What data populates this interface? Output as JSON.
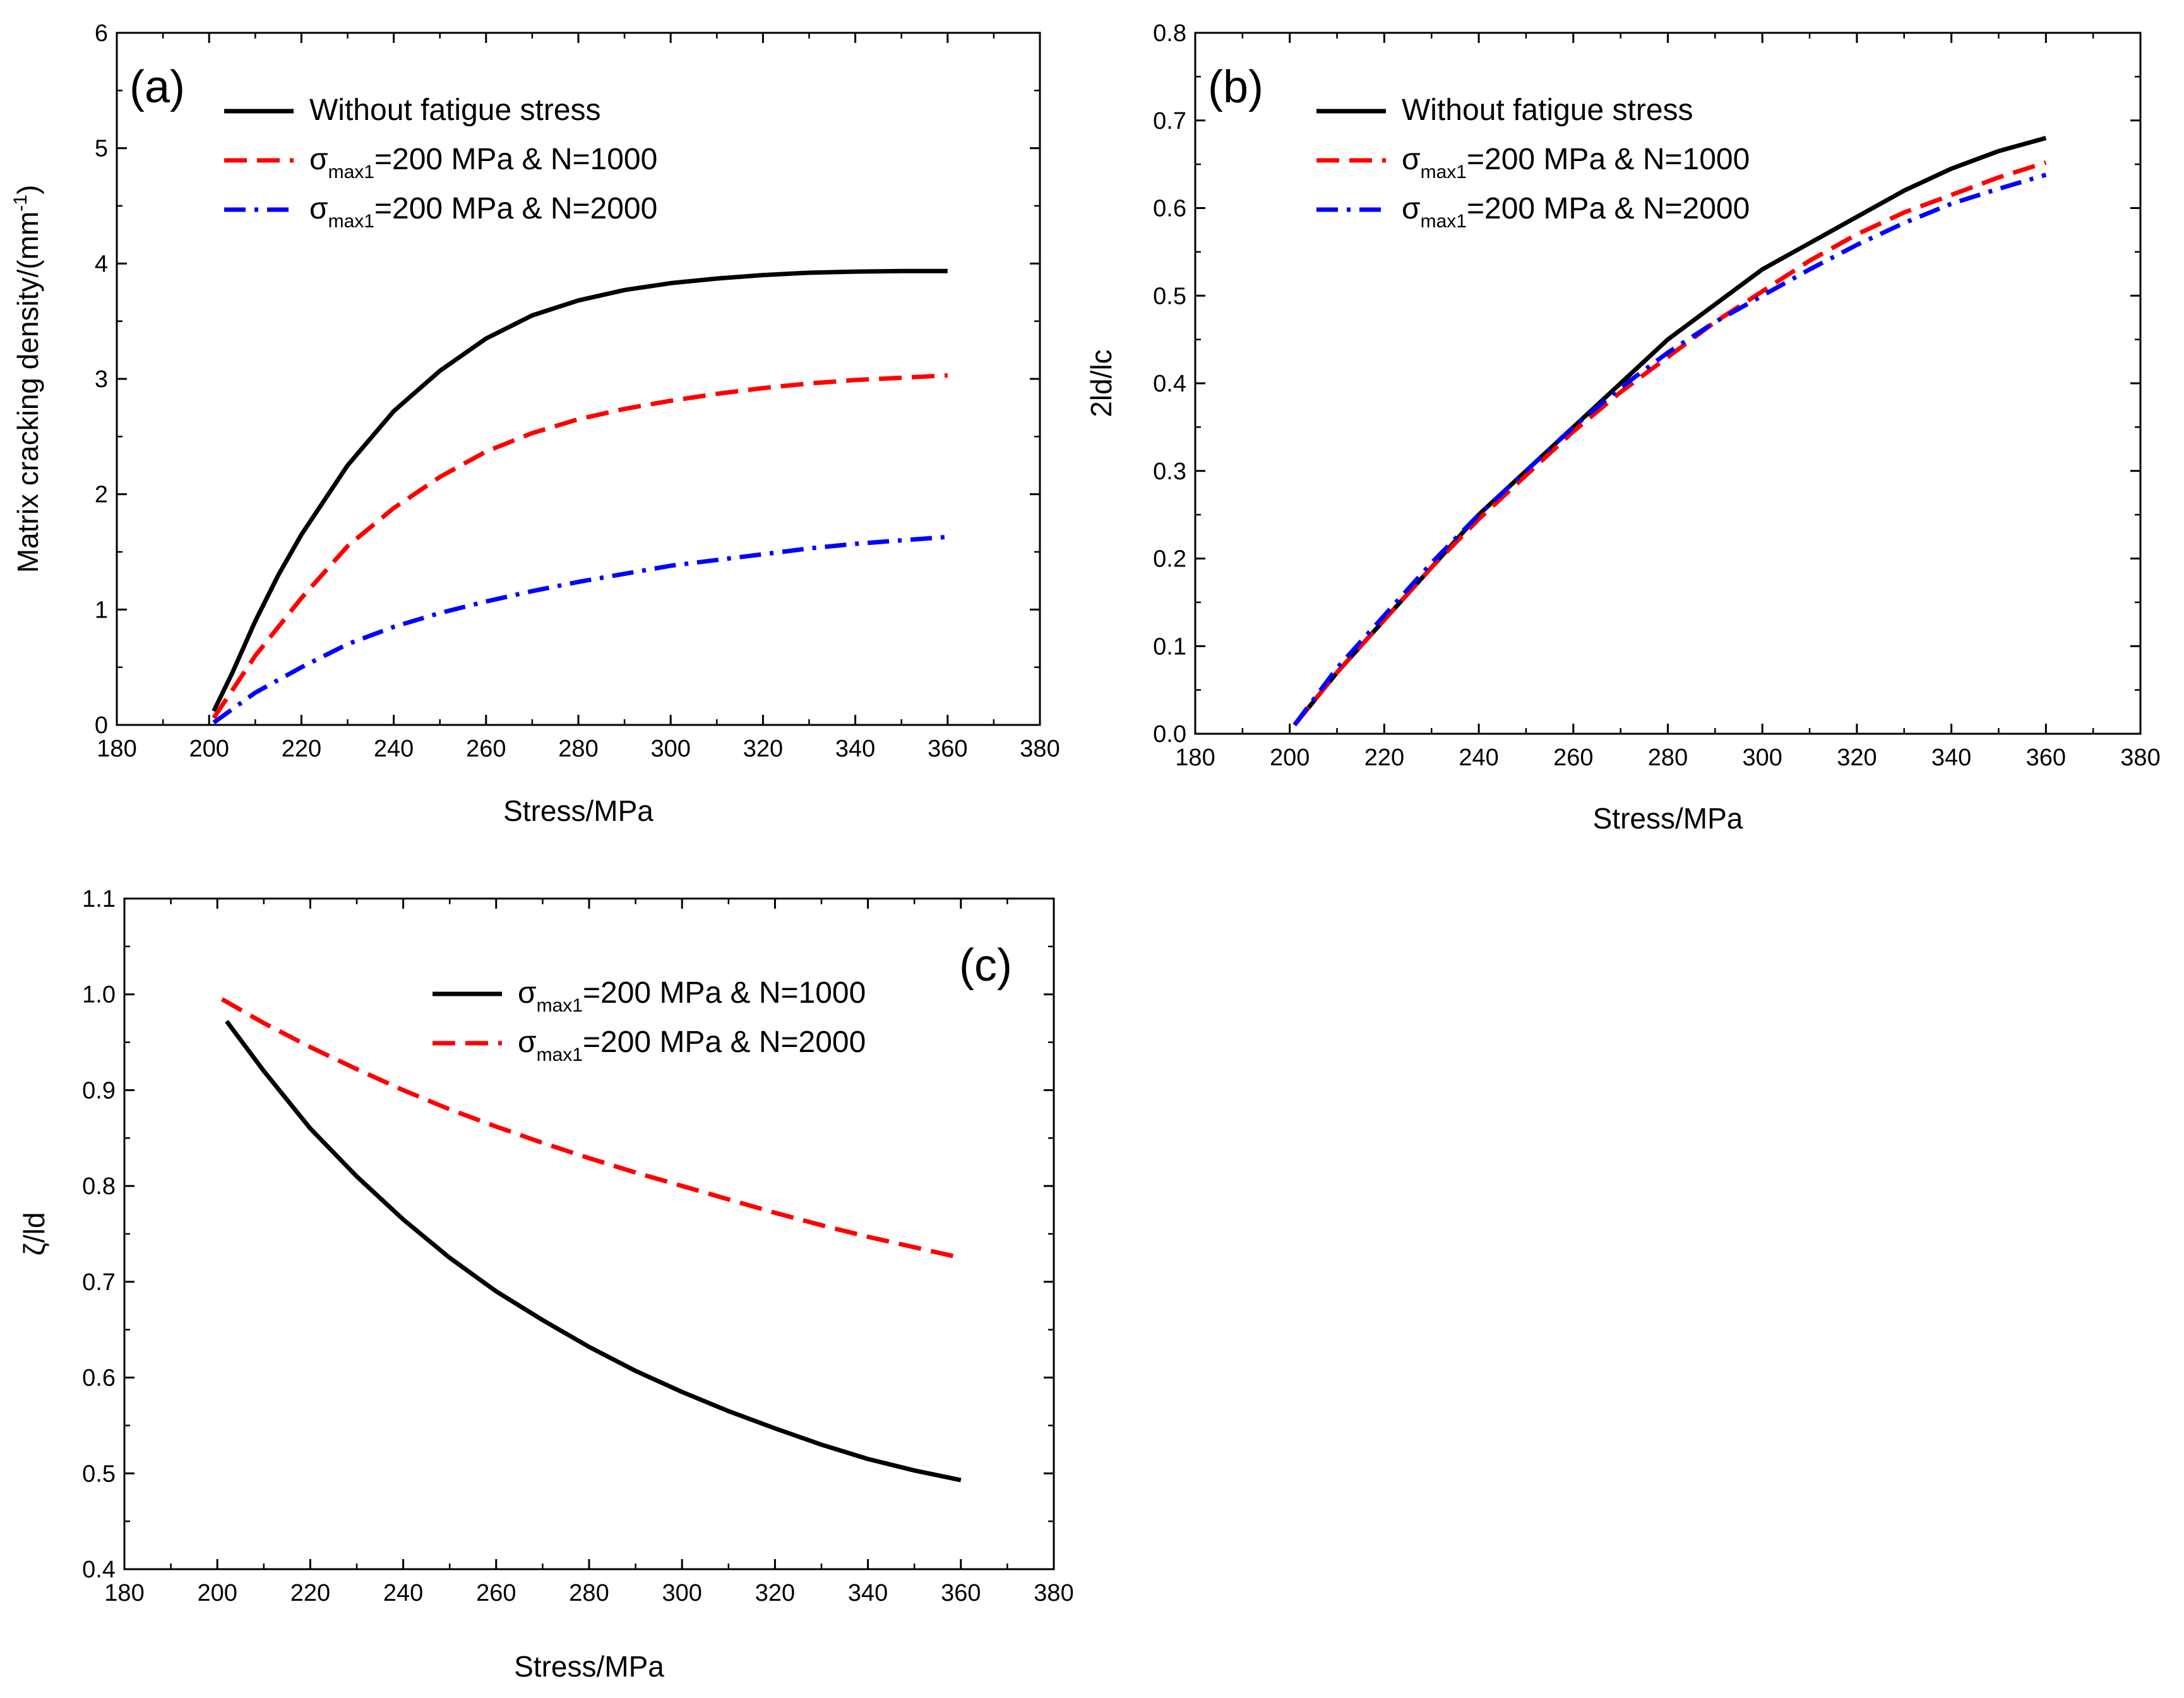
{
  "chart_data": [
    {
      "id": "a",
      "type": "line",
      "panel_label": "(a)",
      "xlabel": "Stress/MPa",
      "ylabel": "Matrix cracking density/(mm",
      "ylabel_sup": "-1",
      "ylabel_end": ")",
      "xlim": [
        180,
        380
      ],
      "ylim": [
        0,
        6
      ],
      "xticks": [
        180,
        200,
        220,
        240,
        260,
        280,
        300,
        320,
        340,
        360,
        380
      ],
      "yticks": [
        0,
        1,
        2,
        3,
        4,
        5,
        6
      ],
      "ytick_decimals": 0,
      "legend_position": "top-left",
      "series": [
        {
          "name": "Without fatigue stress",
          "legend": {
            "main": "Without fatigue stress"
          },
          "color": "#000000",
          "dash": "solid",
          "x": [
            201,
            205,
            210,
            215,
            220,
            230,
            240,
            250,
            260,
            270,
            280,
            290,
            300,
            310,
            320,
            330,
            340,
            350,
            360
          ],
          "y": [
            0.12,
            0.45,
            0.9,
            1.3,
            1.65,
            2.25,
            2.72,
            3.07,
            3.35,
            3.55,
            3.68,
            3.77,
            3.83,
            3.87,
            3.9,
            3.92,
            3.93,
            3.935,
            3.935
          ]
        },
        {
          "name": "σmax1=200 MPa & N=1000",
          "legend": {
            "main": "σ",
            "sub": "max1",
            "rest": "=200 MPa & N=1000"
          },
          "color": "#ff0000",
          "dash": "dashed",
          "x": [
            201,
            205,
            210,
            220,
            230,
            240,
            250,
            260,
            270,
            280,
            290,
            300,
            310,
            320,
            330,
            340,
            350,
            360
          ],
          "y": [
            0.06,
            0.3,
            0.6,
            1.1,
            1.55,
            1.88,
            2.15,
            2.37,
            2.53,
            2.65,
            2.74,
            2.81,
            2.87,
            2.92,
            2.96,
            2.99,
            3.01,
            3.03
          ]
        },
        {
          "name": "σmax1=200 MPa & N=2000",
          "legend": {
            "main": "σ",
            "sub": "max1",
            "rest": "=200 MPa & N=2000"
          },
          "color": "#0000ff",
          "dash": "dashdot",
          "x": [
            201,
            210,
            220,
            230,
            240,
            250,
            260,
            270,
            280,
            290,
            300,
            310,
            320,
            330,
            340,
            350,
            360
          ],
          "y": [
            0.02,
            0.28,
            0.5,
            0.7,
            0.85,
            0.97,
            1.07,
            1.16,
            1.24,
            1.31,
            1.38,
            1.43,
            1.48,
            1.53,
            1.57,
            1.6,
            1.63
          ]
        }
      ]
    },
    {
      "id": "b",
      "type": "line",
      "panel_label": "(b)",
      "xlabel": "Stress/MPa",
      "ylabel": "2ld/lc",
      "xlim": [
        180,
        380
      ],
      "ylim": [
        0,
        0.8
      ],
      "xticks": [
        180,
        200,
        220,
        240,
        260,
        280,
        300,
        320,
        340,
        360,
        380
      ],
      "yticks": [
        0.0,
        0.1,
        0.2,
        0.3,
        0.4,
        0.5,
        0.6,
        0.7,
        0.8
      ],
      "ytick_decimals": 1,
      "legend_position": "top-left",
      "series": [
        {
          "name": "Without fatigue stress",
          "legend": {
            "main": "Without fatigue stress"
          },
          "color": "#000000",
          "dash": "solid",
          "x": [
            201,
            210,
            220,
            230,
            240,
            250,
            260,
            270,
            280,
            290,
            300,
            310,
            320,
            330,
            340,
            350,
            360
          ],
          "y": [
            0.01,
            0.07,
            0.13,
            0.19,
            0.25,
            0.3,
            0.35,
            0.4,
            0.45,
            0.49,
            0.53,
            0.56,
            0.59,
            0.62,
            0.645,
            0.665,
            0.68
          ]
        },
        {
          "name": "σmax1=200 MPa & N=1000",
          "legend": {
            "main": "σ",
            "sub": "max1",
            "rest": "=200 MPa & N=1000"
          },
          "color": "#ff0000",
          "dash": "dashed",
          "x": [
            201,
            210,
            220,
            230,
            240,
            250,
            260,
            270,
            280,
            290,
            300,
            310,
            320,
            330,
            340,
            350,
            360
          ],
          "y": [
            0.01,
            0.07,
            0.13,
            0.19,
            0.245,
            0.295,
            0.345,
            0.39,
            0.43,
            0.47,
            0.505,
            0.54,
            0.57,
            0.595,
            0.615,
            0.635,
            0.652
          ]
        },
        {
          "name": "σmax1=200 MPa & N=2000",
          "legend": {
            "main": "σ",
            "sub": "max1",
            "rest": "=200 MPa & N=2000"
          },
          "color": "#0000ff",
          "dash": "dashdot",
          "x": [
            201,
            210,
            220,
            230,
            240,
            250,
            260,
            270,
            280,
            290,
            300,
            310,
            320,
            330,
            340,
            350,
            360
          ],
          "y": [
            0.01,
            0.075,
            0.135,
            0.195,
            0.25,
            0.3,
            0.35,
            0.395,
            0.435,
            0.47,
            0.5,
            0.53,
            0.558,
            0.583,
            0.605,
            0.622,
            0.638
          ]
        }
      ]
    },
    {
      "id": "c",
      "type": "line",
      "panel_label": "(c)",
      "xlabel": "Stress/MPa",
      "ylabel": "ζ/ld",
      "xlim": [
        180,
        380
      ],
      "ylim": [
        0.4,
        1.1
      ],
      "xticks": [
        180,
        200,
        220,
        240,
        260,
        280,
        300,
        320,
        340,
        360,
        380
      ],
      "yticks": [
        0.4,
        0.5,
        0.6,
        0.7,
        0.8,
        0.9,
        1.0,
        1.1
      ],
      "ytick_decimals": 1,
      "legend_position": "top-right",
      "series": [
        {
          "name": "σmax1=200 MPa & N=1000",
          "legend": {
            "main": "σ",
            "sub": "max1",
            "rest": "=200 MPa & N=1000"
          },
          "color": "#000000",
          "dash": "solid",
          "x": [
            202,
            210,
            220,
            230,
            240,
            250,
            260,
            270,
            280,
            290,
            300,
            310,
            320,
            330,
            340,
            350,
            360
          ],
          "y": [
            0.972,
            0.92,
            0.86,
            0.81,
            0.765,
            0.725,
            0.69,
            0.66,
            0.632,
            0.607,
            0.585,
            0.565,
            0.547,
            0.53,
            0.515,
            0.503,
            0.493
          ]
        },
        {
          "name": "σmax1=200 MPa & N=2000",
          "legend": {
            "main": "σ",
            "sub": "max1",
            "rest": "=200 MPa & N=2000"
          },
          "color": "#ff0000",
          "dash": "dashed",
          "x": [
            201,
            210,
            220,
            230,
            240,
            250,
            260,
            270,
            280,
            290,
            300,
            310,
            320,
            330,
            340,
            350,
            360
          ],
          "y": [
            0.995,
            0.97,
            0.945,
            0.922,
            0.9,
            0.88,
            0.862,
            0.845,
            0.829,
            0.814,
            0.8,
            0.786,
            0.772,
            0.759,
            0.747,
            0.736,
            0.725
          ]
        }
      ]
    }
  ]
}
